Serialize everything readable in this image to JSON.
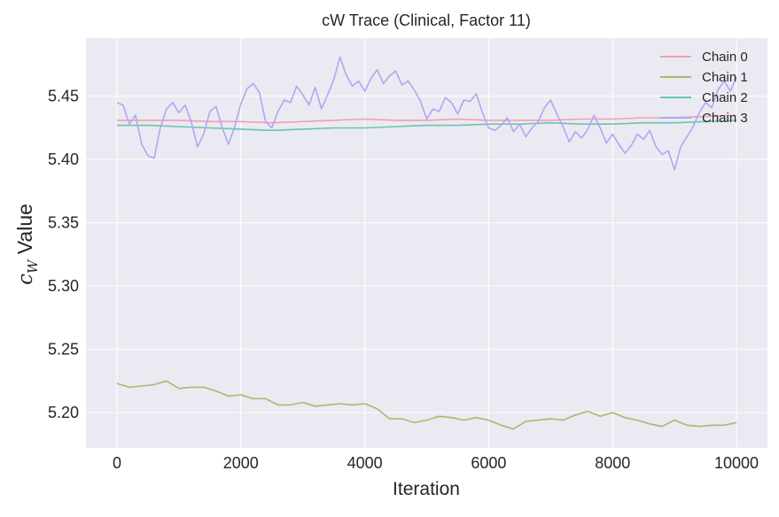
{
  "chart_data": {
    "type": "line",
    "title": "cW Trace (Clinical, Factor 11)",
    "xlabel": "Iteration",
    "ylabel_symbol": "c",
    "ylabel_subscript": "W",
    "ylabel_text": " Value",
    "xlim": [
      -500,
      10500
    ],
    "ylim": [
      5.172,
      5.496
    ],
    "xticks": [
      0,
      2000,
      4000,
      6000,
      8000,
      10000
    ],
    "xtick_labels": [
      "0",
      "2000",
      "4000",
      "6000",
      "8000",
      "10000"
    ],
    "yticks": [
      5.2,
      5.25,
      5.3,
      5.35,
      5.4,
      5.45
    ],
    "ytick_labels": [
      "5.20",
      "5.25",
      "5.30",
      "5.35",
      "5.40",
      "5.45"
    ],
    "grid": true,
    "legend_position": "top-right",
    "style": {
      "background": "#eaeaf2",
      "grid_color": "#ffffff"
    },
    "series": [
      {
        "name": "Chain 0",
        "color": "#f2a0ae",
        "x": [
          0,
          500,
          1000,
          1500,
          2000,
          2500,
          3000,
          3500,
          4000,
          4500,
          5000,
          5500,
          6000,
          6500,
          7000,
          7500,
          8000,
          8500,
          9000,
          9500,
          10000
        ],
        "values": [
          5.431,
          5.431,
          5.431,
          5.43,
          5.43,
          5.429,
          5.43,
          5.431,
          5.432,
          5.431,
          5.431,
          5.432,
          5.431,
          5.431,
          5.431,
          5.432,
          5.432,
          5.433,
          5.433,
          5.434,
          5.435
        ]
      },
      {
        "name": "Chain 1",
        "color": "#a9b96e",
        "x": [
          0,
          200,
          400,
          600,
          800,
          1000,
          1200,
          1400,
          1600,
          1800,
          2000,
          2200,
          2400,
          2600,
          2800,
          3000,
          3200,
          3400,
          3600,
          3800,
          4000,
          4200,
          4400,
          4600,
          4800,
          5000,
          5200,
          5400,
          5600,
          5800,
          6000,
          6200,
          6400,
          6600,
          6800,
          7000,
          7200,
          7400,
          7600,
          7800,
          8000,
          8200,
          8400,
          8600,
          8800,
          9000,
          9200,
          9400,
          9600,
          9800,
          10000
        ],
        "values": [
          5.223,
          5.22,
          5.221,
          5.222,
          5.225,
          5.219,
          5.22,
          5.22,
          5.217,
          5.213,
          5.214,
          5.211,
          5.211,
          5.206,
          5.206,
          5.208,
          5.205,
          5.206,
          5.207,
          5.206,
          5.207,
          5.203,
          5.195,
          5.195,
          5.192,
          5.194,
          5.197,
          5.196,
          5.194,
          5.196,
          5.194,
          5.19,
          5.187,
          5.193,
          5.194,
          5.195,
          5.194,
          5.198,
          5.201,
          5.197,
          5.2,
          5.196,
          5.194,
          5.191,
          5.189,
          5.194,
          5.19,
          5.189,
          5.19,
          5.19,
          5.192
        ]
      },
      {
        "name": "Chain 2",
        "color": "#6cc2b4",
        "x": [
          0,
          500,
          1000,
          1500,
          2000,
          2500,
          3000,
          3500,
          4000,
          4500,
          5000,
          5500,
          6000,
          6500,
          7000,
          7500,
          8000,
          8500,
          9000,
          9500,
          10000
        ],
        "values": [
          5.427,
          5.427,
          5.426,
          5.425,
          5.424,
          5.423,
          5.424,
          5.425,
          5.425,
          5.426,
          5.427,
          5.427,
          5.428,
          5.428,
          5.429,
          5.428,
          5.428,
          5.429,
          5.429,
          5.43,
          5.431
        ]
      },
      {
        "name": "Chain 3",
        "color": "#b3a6f0",
        "x": [
          0,
          100,
          200,
          300,
          400,
          500,
          600,
          700,
          800,
          900,
          1000,
          1100,
          1200,
          1300,
          1400,
          1500,
          1600,
          1700,
          1800,
          1900,
          2000,
          2100,
          2200,
          2300,
          2400,
          2500,
          2600,
          2700,
          2800,
          2900,
          3000,
          3100,
          3200,
          3300,
          3400,
          3500,
          3600,
          3700,
          3800,
          3900,
          4000,
          4100,
          4200,
          4300,
          4400,
          4500,
          4600,
          4700,
          4800,
          4900,
          5000,
          5100,
          5200,
          5300,
          5400,
          5500,
          5600,
          5700,
          5800,
          5900,
          6000,
          6100,
          6200,
          6300,
          6400,
          6500,
          6600,
          6700,
          6800,
          6900,
          7000,
          7100,
          7200,
          7300,
          7400,
          7500,
          7600,
          7700,
          7800,
          7900,
          8000,
          8100,
          8200,
          8300,
          8400,
          8500,
          8600,
          8700,
          8800,
          8900,
          9000,
          9100,
          9200,
          9300,
          9400,
          9500,
          9600,
          9700,
          9800,
          9900,
          10000
        ],
        "values": [
          5.445,
          5.443,
          5.428,
          5.435,
          5.412,
          5.403,
          5.401,
          5.425,
          5.44,
          5.445,
          5.437,
          5.443,
          5.43,
          5.41,
          5.42,
          5.438,
          5.442,
          5.425,
          5.412,
          5.426,
          5.444,
          5.456,
          5.46,
          5.453,
          5.43,
          5.425,
          5.438,
          5.447,
          5.445,
          5.458,
          5.451,
          5.443,
          5.457,
          5.44,
          5.451,
          5.463,
          5.481,
          5.467,
          5.458,
          5.462,
          5.454,
          5.464,
          5.471,
          5.46,
          5.466,
          5.47,
          5.459,
          5.462,
          5.455,
          5.446,
          5.432,
          5.44,
          5.438,
          5.449,
          5.445,
          5.436,
          5.447,
          5.446,
          5.452,
          5.437,
          5.425,
          5.423,
          5.427,
          5.433,
          5.422,
          5.428,
          5.418,
          5.425,
          5.43,
          5.441,
          5.447,
          5.436,
          5.426,
          5.414,
          5.422,
          5.417,
          5.424,
          5.435,
          5.425,
          5.413,
          5.42,
          5.412,
          5.405,
          5.411,
          5.42,
          5.416,
          5.423,
          5.41,
          5.404,
          5.407,
          5.392,
          5.41,
          5.418,
          5.426,
          5.437,
          5.445,
          5.441,
          5.455,
          5.462,
          5.454,
          5.465
        ]
      }
    ]
  }
}
